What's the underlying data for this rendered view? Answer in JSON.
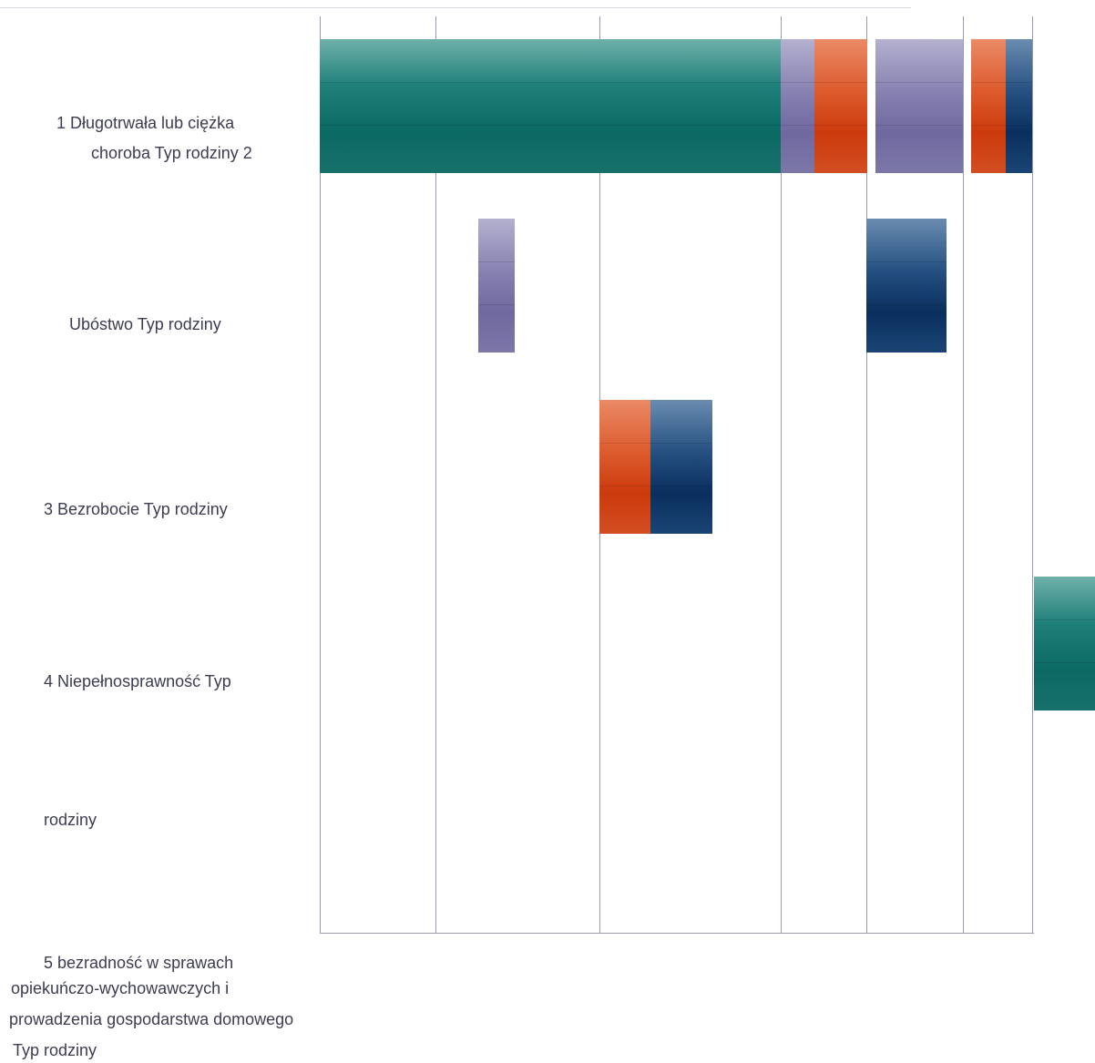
{
  "chart_data": {
    "type": "bar",
    "orientation": "horizontal",
    "stacked": true,
    "categories": [
      "1 Długotrwała lub ciężka choroba Typ rodziny 2",
      "Ubóstwo Typ rodziny",
      "3 Bezrobocie Typ rodziny",
      "4 Niepełnosprawność Typ rodziny",
      "5 bezradność w sprawach opiekuńczo-wychowawczych i prowadzenia gospodarstwa domowego Typ rodziny"
    ],
    "label_lines": {
      "row1_line1": "1 Długotrwała lub ciężka",
      "row1_line2": "choroba Typ rodziny 2",
      "row2_line1": "Ubóstwo Typ rodziny",
      "row3_line1": "3 Bezrobocie Typ rodziny",
      "row4_line1": "4 Niepełnosprawność Typ",
      "row4_line2": "rodziny",
      "row5_line1": "5 bezradność w sprawach",
      "row5_line2": "opiekuńczo-wychowawczych i",
      "row5_line3": "prowadzenia gospodarstwa domowego",
      "row5_line4": "Typ rodziny"
    },
    "segments": [
      {
        "row": 0,
        "start": 0,
        "end": 506,
        "color": "teal"
      },
      {
        "row": 0,
        "start": 506,
        "end": 543,
        "color": "purple"
      },
      {
        "row": 0,
        "start": 543,
        "end": 601,
        "color": "red"
      },
      {
        "row": 0,
        "start": 610,
        "end": 706,
        "color": "purple"
      },
      {
        "row": 0,
        "start": 715,
        "end": 753,
        "color": "red"
      },
      {
        "row": 0,
        "start": 753,
        "end": 782,
        "color": "navy"
      },
      {
        "row": 1,
        "start": 174,
        "end": 214,
        "color": "purple"
      },
      {
        "row": 1,
        "start": 600,
        "end": 688,
        "color": "navy"
      },
      {
        "row": 2,
        "start": 307,
        "end": 363,
        "color": "red"
      },
      {
        "row": 2,
        "start": 363,
        "end": 431,
        "color": "navy"
      },
      {
        "row": 3,
        "start": 784,
        "end": 852,
        "color": "teal"
      }
    ],
    "xlim": [
      0,
      782
    ],
    "gridlines_x": [
      0,
      127,
      307,
      506,
      600,
      706,
      782
    ],
    "grid": true,
    "legend": "none",
    "xlabel": "",
    "ylabel": ""
  },
  "colors": {
    "teal": "#0e7068",
    "purple": "#7a74a6",
    "red": "#d34214",
    "navy": "#0e3c6e",
    "gridline": "#9a9ab0"
  }
}
